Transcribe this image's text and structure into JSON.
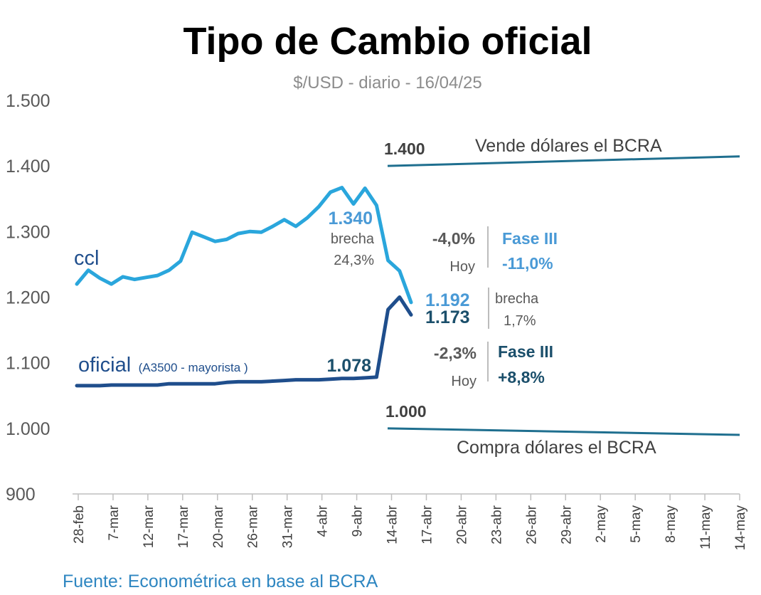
{
  "chart_data": {
    "type": "line",
    "title": "Tipo de Cambio oficial",
    "subtitle": "$/USD - diario - 16/04/25",
    "ylim": [
      900,
      1500
    ],
    "yticks": [
      "1.500",
      "1.400",
      "1.300",
      "1.200",
      "1.100",
      "1.000",
      "900"
    ],
    "ytick_values": [
      1500,
      1400,
      1300,
      1200,
      1100,
      1000,
      900
    ],
    "x_tick_labels": [
      "28-feb",
      "7-mar",
      "12-mar",
      "17-mar",
      "20-mar",
      "26-mar",
      "31-mar",
      "4-abr",
      "9-abr",
      "14-abr",
      "17-abr",
      "20-abr",
      "23-abr",
      "26-abr",
      "29-abr",
      "2-may",
      "5-may",
      "8-may",
      "11-may",
      "14-may"
    ],
    "grid": false,
    "colors": {
      "ccl": "#2aa6dc",
      "oficial": "#1f4e8c",
      "band": "#1f6f8f",
      "ccl_text": "#4a9ad6",
      "oficial_text": "#1b4f6b",
      "gray": "#595959"
    },
    "series": [
      {
        "name": "ccl",
        "label": "ccl",
        "values": [
          1220,
          1241,
          1229,
          1220,
          1231,
          1227,
          1230,
          1233,
          1241,
          1255,
          1299,
          1292,
          1285,
          1288,
          1297,
          1300,
          1299,
          1308,
          1318,
          1308,
          1321,
          1338,
          1360,
          1367,
          1342,
          1366,
          1340,
          1256,
          1240,
          1192
        ]
      },
      {
        "name": "oficial",
        "label": "oficial",
        "label_note": "(A3500 - mayorista )",
        "values": [
          1065,
          1065,
          1065,
          1066,
          1066,
          1066,
          1066,
          1066,
          1068,
          1068,
          1068,
          1068,
          1068,
          1070,
          1071,
          1071,
          1071,
          1072,
          1073,
          1074,
          1074,
          1074,
          1075,
          1076,
          1076,
          1077,
          1078,
          1181,
          1200,
          1173
        ]
      }
    ],
    "bands": [
      {
        "name": "Vende dólares el BCRA",
        "start_label": "1.400",
        "start": 1400,
        "end": 1414.6
      },
      {
        "name": "Compra dólares el BCRA",
        "start_label": "1.000",
        "start": 1000,
        "end": 990
      }
    ],
    "annotations": {
      "ccl_peak_value": "1.340",
      "ccl_peak_note_1": "brecha",
      "ccl_peak_note_2": "24,3%",
      "oficial_prev_value": "1.078",
      "ccl_last": "1.192",
      "oficial_last": "1.173",
      "brecha_now_1": "brecha",
      "brecha_now_2": "1,7%",
      "ccl_change_today": "-4,0%",
      "ccl_today_label": "Hoy",
      "ccl_fase_label": "Fase III",
      "ccl_fase_value": "-11,0%",
      "oficial_change_today": "-2,3%",
      "oficial_today_label": "Hoy",
      "oficial_fase_label": "Fase III",
      "oficial_fase_value": "+8,8%"
    },
    "source": "Fuente: Econométrica en base al BCRA"
  }
}
